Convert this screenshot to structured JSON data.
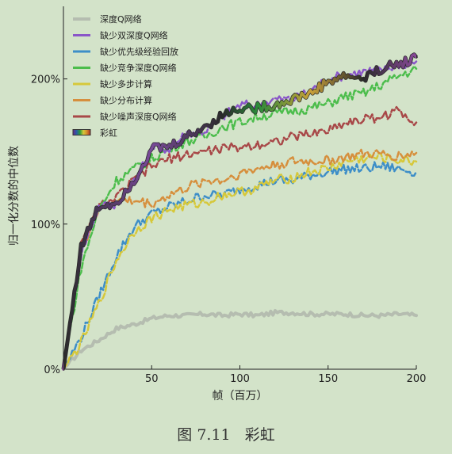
{
  "caption": {
    "label": "图 7.11",
    "title": "彩虹"
  },
  "chart_data": {
    "type": "line",
    "title": "",
    "xlabel": "帧（百万）",
    "ylabel": "归一化分数的中位数",
    "xlim": [
      0,
      200
    ],
    "ylim": [
      0,
      2.5
    ],
    "xticks": [
      50,
      100,
      150,
      200
    ],
    "yticks": [
      {
        "value": 0,
        "label": "0%"
      },
      {
        "value": 1,
        "label": "100%"
      },
      {
        "value": 2,
        "label": "200%"
      }
    ],
    "grid": false,
    "legend_position": "top-left",
    "x": [
      0,
      10,
      20,
      30,
      40,
      50,
      60,
      70,
      80,
      90,
      100,
      110,
      120,
      130,
      140,
      150,
      160,
      170,
      180,
      190,
      200
    ],
    "series": [
      {
        "name": "深度Q网络",
        "color": "#b5bdb0",
        "style": "solid",
        "width": 4,
        "values": [
          0,
          0.13,
          0.2,
          0.28,
          0.31,
          0.35,
          0.37,
          0.37,
          0.38,
          0.37,
          0.38,
          0.37,
          0.39,
          0.39,
          0.38,
          0.38,
          0.38,
          0.37,
          0.37,
          0.38,
          0.37
        ]
      },
      {
        "name": "缺少双深度Q网络",
        "color": "#8a56c8",
        "style": "dashed",
        "width": 2.5,
        "values": [
          0,
          0.8,
          1.12,
          1.14,
          1.28,
          1.53,
          1.52,
          1.63,
          1.64,
          1.74,
          1.82,
          1.82,
          1.86,
          1.86,
          1.92,
          2.0,
          2.03,
          2.05,
          2.06,
          2.1,
          2.12
        ]
      },
      {
        "name": "缺少优先级经验回放",
        "color": "#3d8ec8",
        "style": "dashed",
        "width": 2.5,
        "values": [
          0,
          0.22,
          0.5,
          0.78,
          0.98,
          1.07,
          1.12,
          1.16,
          1.2,
          1.2,
          1.24,
          1.27,
          1.3,
          1.3,
          1.34,
          1.36,
          1.38,
          1.38,
          1.4,
          1.38,
          1.36
        ]
      },
      {
        "name": "缺少竞争深度Q网络",
        "color": "#4cbd4c",
        "style": "dashed",
        "width": 2.5,
        "values": [
          0,
          0.7,
          1.1,
          1.3,
          1.38,
          1.45,
          1.52,
          1.57,
          1.6,
          1.67,
          1.7,
          1.74,
          1.76,
          1.78,
          1.8,
          1.83,
          1.88,
          1.9,
          1.96,
          2.02,
          2.07
        ]
      },
      {
        "name": "缺少多步计算",
        "color": "#d6c83a",
        "style": "dashed",
        "width": 2.5,
        "values": [
          0,
          0.18,
          0.45,
          0.75,
          0.95,
          1.04,
          1.1,
          1.13,
          1.15,
          1.2,
          1.22,
          1.25,
          1.3,
          1.32,
          1.36,
          1.38,
          1.43,
          1.45,
          1.46,
          1.44,
          1.43
        ]
      },
      {
        "name": "缺少分布计算",
        "color": "#d68f3d",
        "style": "dashed",
        "width": 2.5,
        "values": [
          0,
          0.82,
          1.1,
          1.16,
          1.16,
          1.14,
          1.2,
          1.25,
          1.3,
          1.3,
          1.35,
          1.38,
          1.41,
          1.43,
          1.43,
          1.44,
          1.46,
          1.48,
          1.48,
          1.47,
          1.49
        ]
      },
      {
        "name": "缺少噪声深度Q网络",
        "color": "#a84848",
        "style": "dashed",
        "width": 2.5,
        "values": [
          0,
          0.85,
          1.12,
          1.18,
          1.3,
          1.4,
          1.45,
          1.48,
          1.5,
          1.52,
          1.53,
          1.55,
          1.57,
          1.6,
          1.62,
          1.65,
          1.7,
          1.72,
          1.74,
          1.78,
          1.7
        ]
      },
      {
        "name": "彩虹",
        "color": "rainbow",
        "style": "solid",
        "width": 3.5,
        "values": [
          0,
          0.84,
          1.12,
          1.15,
          1.3,
          1.52,
          1.53,
          1.6,
          1.67,
          1.75,
          1.8,
          1.8,
          1.82,
          1.86,
          1.9,
          1.98,
          2.02,
          2.0,
          2.07,
          2.1,
          2.15
        ]
      }
    ]
  }
}
